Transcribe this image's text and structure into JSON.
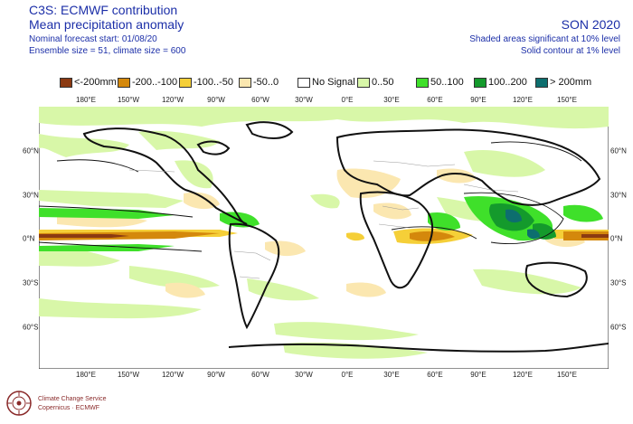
{
  "header": {
    "line1": "C3S: ECMWF contribution",
    "line2": "Mean precipitation anomaly",
    "line3": "Nominal forecast start: 01/08/20",
    "line4": "Ensemble size = 51, climate size = 600",
    "season": "SON 2020",
    "note1": "Shaded areas significant at 10% level",
    "note2": "Solid contour at 1% level"
  },
  "legend": [
    {
      "label": "<-200mm",
      "color": "#8b3a12"
    },
    {
      "label": "-200..-100",
      "color": "#d4880c"
    },
    {
      "label": "-100..-50",
      "color": "#f5cf38"
    },
    {
      "label": "-50..0",
      "color": "#fbe7b0"
    },
    {
      "label": "No Signal",
      "color": "#ffffff"
    },
    {
      "label": "0..50",
      "color": "#d8f7a8"
    },
    {
      "label": "50..100",
      "color": "#3fe02a"
    },
    {
      "label": "100..200",
      "color": "#149a2c"
    },
    {
      "label": "> 200mm",
      "color": "#0d6e6e"
    }
  ],
  "axes": {
    "lon_labels": [
      "180°E",
      "150°W",
      "120°W",
      "90°W",
      "60°W",
      "30°W",
      "0°E",
      "30°E",
      "60°E",
      "90°E",
      "120°E",
      "150°E"
    ],
    "lat_labels": [
      "60°N",
      "30°N",
      "0°N",
      "30°S",
      "60°S"
    ]
  },
  "logo": {
    "name": "Climate Change Service",
    "tagline": "Copernicus · ECMWF"
  }
}
